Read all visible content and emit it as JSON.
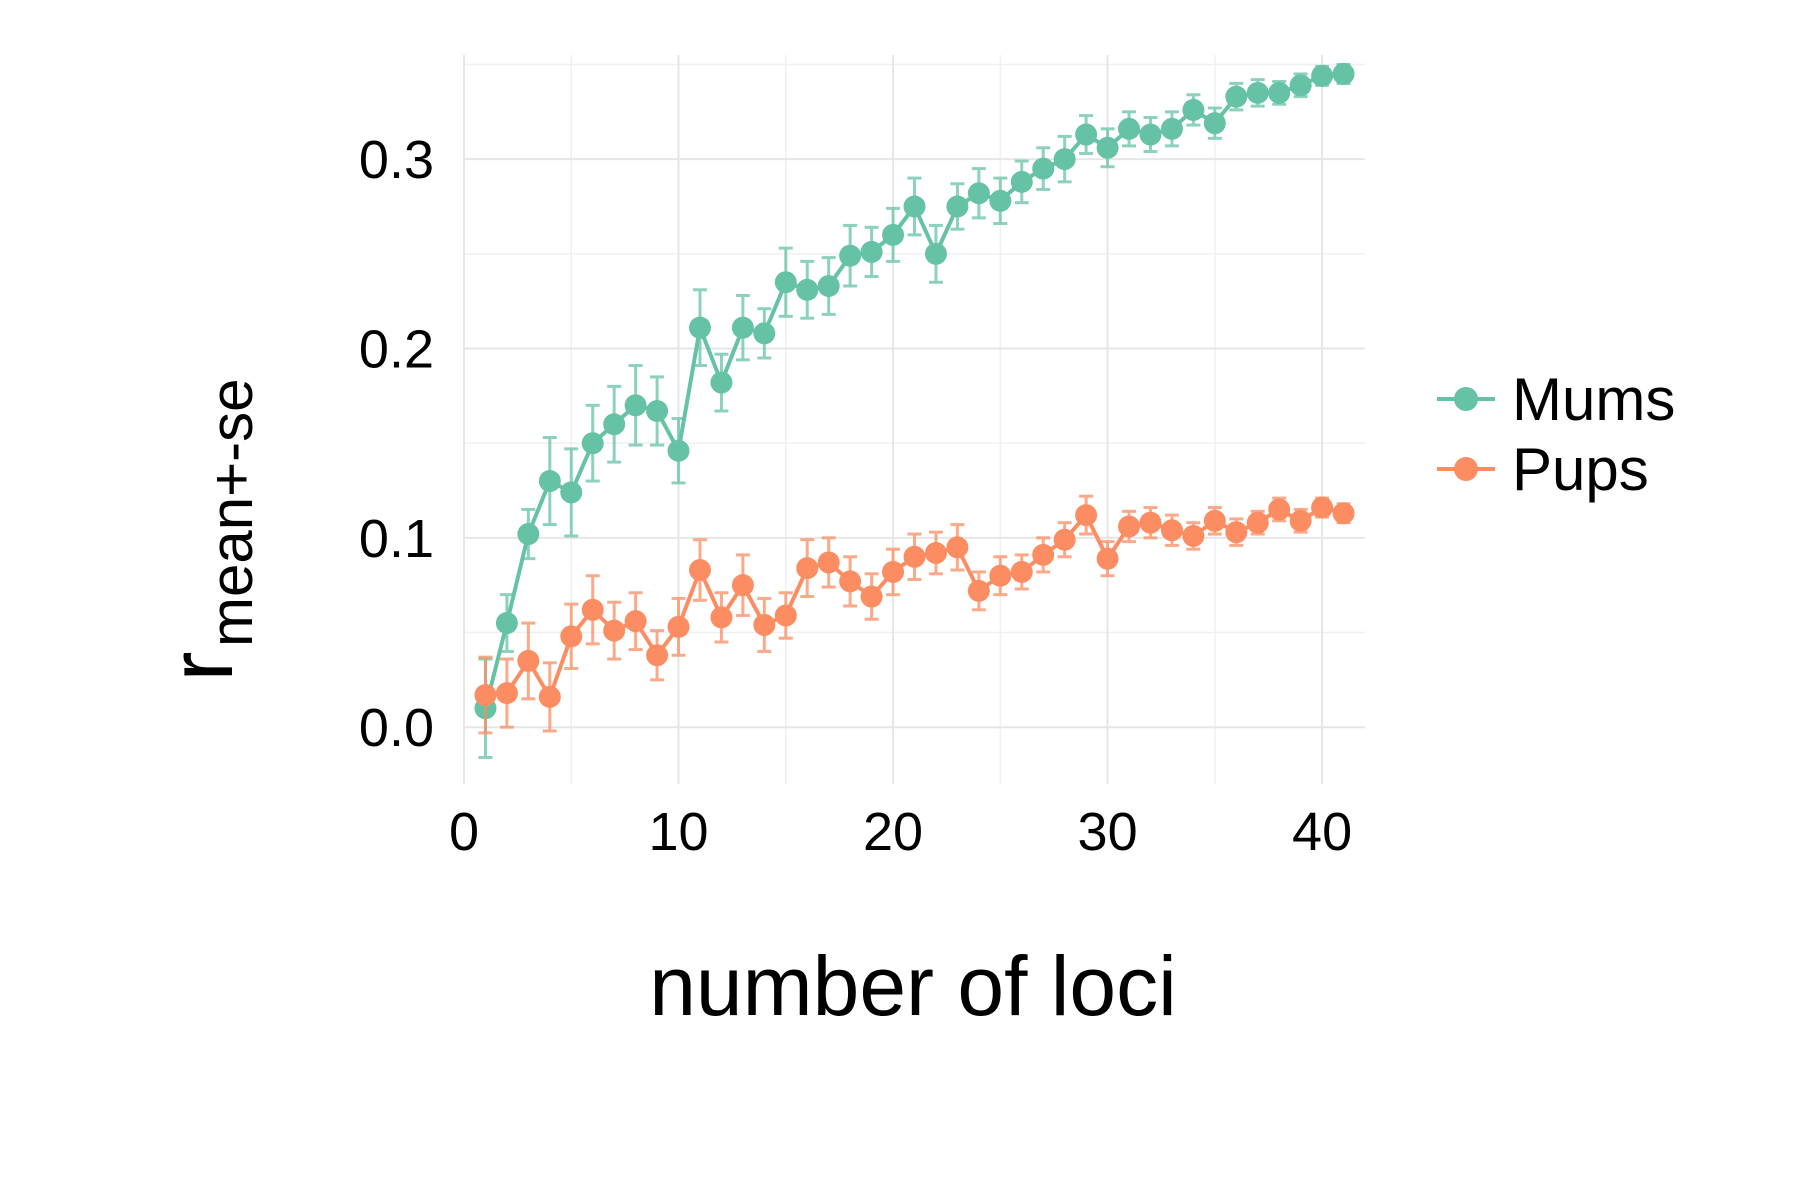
{
  "chart_data": {
    "type": "line",
    "xlabel": "number of loci",
    "ylabel": {
      "main": "r",
      "subscript": "mean+-se"
    },
    "xlim": [
      0,
      42
    ],
    "ylim": [
      -0.03,
      0.355
    ],
    "x_ticks": [
      0,
      10,
      20,
      30,
      40
    ],
    "x_tick_labels": [
      "0",
      "10",
      "20",
      "30",
      "40"
    ],
    "y_ticks": [
      0.0,
      0.1,
      0.2,
      0.3
    ],
    "y_tick_labels": [
      "0.0",
      "0.1",
      "0.2",
      "0.3"
    ],
    "grid": true,
    "legend_position": "right",
    "x": [
      1,
      2,
      3,
      4,
      5,
      6,
      7,
      8,
      9,
      10,
      11,
      12,
      13,
      14,
      15,
      16,
      17,
      18,
      19,
      20,
      21,
      22,
      23,
      24,
      25,
      26,
      27,
      28,
      29,
      30,
      31,
      32,
      33,
      34,
      35,
      36,
      37,
      38,
      39,
      40,
      41
    ],
    "series": [
      {
        "name": "Mums",
        "color": "#66c2a5",
        "values": [
          0.01,
          0.055,
          0.102,
          0.13,
          0.124,
          0.15,
          0.16,
          0.17,
          0.167,
          0.146,
          0.211,
          0.182,
          0.211,
          0.208,
          0.235,
          0.231,
          0.233,
          0.249,
          0.251,
          0.26,
          0.275,
          0.25,
          0.275,
          0.282,
          0.278,
          0.288,
          0.295,
          0.3,
          0.313,
          0.306,
          0.316,
          0.313,
          0.316,
          0.326,
          0.319,
          0.333,
          0.335,
          0.335,
          0.339,
          0.344,
          0.345
        ],
        "se": [
          0.026,
          0.015,
          0.013,
          0.023,
          0.023,
          0.02,
          0.02,
          0.021,
          0.018,
          0.017,
          0.02,
          0.015,
          0.017,
          0.013,
          0.018,
          0.015,
          0.015,
          0.016,
          0.013,
          0.014,
          0.015,
          0.015,
          0.012,
          0.013,
          0.012,
          0.011,
          0.011,
          0.012,
          0.01,
          0.01,
          0.009,
          0.009,
          0.009,
          0.008,
          0.008,
          0.007,
          0.007,
          0.006,
          0.006,
          0.005,
          0.005
        ]
      },
      {
        "name": "Pups",
        "color": "#fc8d62",
        "values": [
          0.017,
          0.018,
          0.035,
          0.016,
          0.048,
          0.062,
          0.051,
          0.056,
          0.038,
          0.053,
          0.083,
          0.058,
          0.075,
          0.054,
          0.059,
          0.084,
          0.087,
          0.077,
          0.069,
          0.082,
          0.09,
          0.092,
          0.095,
          0.072,
          0.08,
          0.082,
          0.091,
          0.099,
          0.112,
          0.089,
          0.106,
          0.108,
          0.104,
          0.101,
          0.109,
          0.103,
          0.108,
          0.115,
          0.109,
          0.116,
          0.113
        ],
        "se": [
          0.02,
          0.018,
          0.02,
          0.018,
          0.017,
          0.018,
          0.015,
          0.015,
          0.013,
          0.015,
          0.016,
          0.013,
          0.016,
          0.014,
          0.012,
          0.015,
          0.013,
          0.013,
          0.012,
          0.012,
          0.012,
          0.011,
          0.012,
          0.01,
          0.01,
          0.009,
          0.009,
          0.009,
          0.01,
          0.009,
          0.008,
          0.008,
          0.008,
          0.007,
          0.007,
          0.007,
          0.006,
          0.006,
          0.006,
          0.005,
          0.005
        ]
      }
    ]
  }
}
